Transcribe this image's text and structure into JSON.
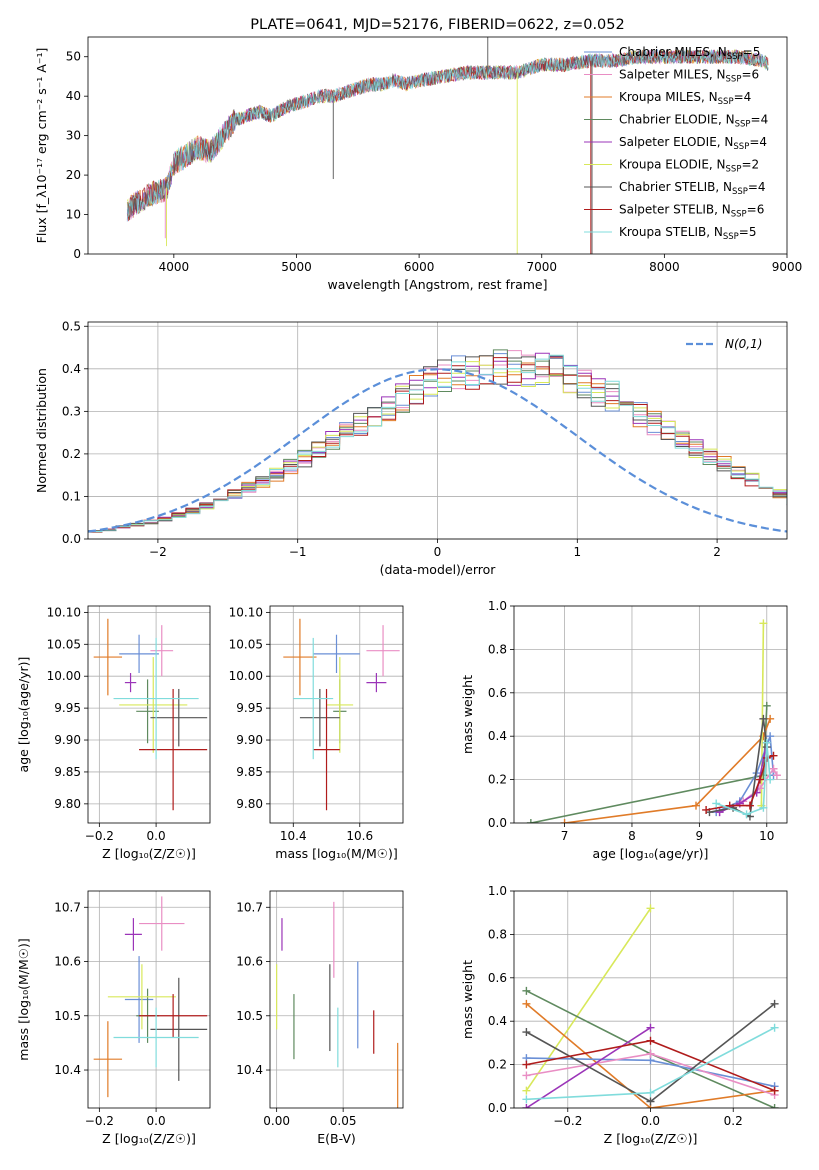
{
  "colors": {
    "chabrier_miles": "#6a8fd6",
    "salpeter_miles": "#e98ec4",
    "kroupa_miles": "#e07b28",
    "chabrier_elodie": "#5f8a5f",
    "salpeter_elodie": "#9b34b8",
    "kroupa_elodie": "#d8e85a",
    "chabrier_stelib": "#555555",
    "salpeter_stelib": "#b01c1c",
    "kroupa_stelib": "#80dcdc",
    "normal_curve": "#5b8fd9"
  },
  "chart_data": [
    {
      "id": "spectrum",
      "type": "line",
      "title": "PLATE=0641, MJD=52176, FIBERID=0622, z=0.052",
      "xlabel": "wavelength [Angstrom, rest frame]",
      "ylabel": "Flux [f_λ10⁻¹⁷ erg cm⁻² s⁻¹ A⁻¹]",
      "xlim": [
        3300,
        9000
      ],
      "ylim": [
        0,
        55
      ],
      "xticks": [
        4000,
        5000,
        6000,
        7000,
        8000,
        9000
      ],
      "yticks": [
        0,
        10,
        20,
        30,
        40,
        50
      ],
      "legend_position": "top-right",
      "legend": [
        {
          "label": "Chabrier MILES, N_SSP=5",
          "pre": "Chabrier MILES, N",
          "sub": "SSP",
          "post": "=5",
          "color_key": "chabrier_miles"
        },
        {
          "label": "Salpeter MILES, N_SSP=6",
          "pre": "Salpeter MILES, N",
          "sub": "SSP",
          "post": "=6",
          "color_key": "salpeter_miles"
        },
        {
          "label": "Kroupa MILES, N_SSP=4",
          "pre": "Kroupa MILES, N",
          "sub": "SSP",
          "post": "=4",
          "color_key": "kroupa_miles"
        },
        {
          "label": "Chabrier ELODIE, N_SSP=4",
          "pre": "Chabrier ELODIE, N",
          "sub": "SSP",
          "post": "=4",
          "color_key": "chabrier_elodie"
        },
        {
          "label": "Salpeter ELODIE, N_SSP=4",
          "pre": "Salpeter ELODIE, N",
          "sub": "SSP",
          "post": "=4",
          "color_key": "salpeter_elodie"
        },
        {
          "label": "Kroupa ELODIE, N_SSP=2",
          "pre": "Kroupa ELODIE, N",
          "sub": "SSP",
          "post": "=2",
          "color_key": "kroupa_elodie"
        },
        {
          "label": "Chabrier STELIB, N_SSP=4",
          "pre": "Chabrier STELIB, N",
          "sub": "SSP",
          "post": "=4",
          "color_key": "chabrier_stelib"
        },
        {
          "label": "Salpeter STELIB, N_SSP=6",
          "pre": "Salpeter STELIB, N",
          "sub": "SSP",
          "post": "=6",
          "color_key": "salpeter_stelib"
        },
        {
          "label": "Kroupa STELIB, N_SSP=5",
          "pre": "Kroupa STELIB, N",
          "sub": "SSP",
          "post": "=5",
          "color_key": "kroupa_stelib"
        }
      ],
      "continuum": {
        "x": [
          3620,
          3700,
          3800,
          3900,
          3950,
          4000,
          4100,
          4200,
          4300,
          4400,
          4500,
          4600,
          4700,
          4800,
          4900,
          5000,
          5100,
          5200,
          5300,
          5400,
          5500,
          5600,
          5700,
          5800,
          5900,
          6000,
          6200,
          6400,
          6600,
          6800,
          7000,
          7200,
          7400,
          7600,
          7800,
          8000,
          8200,
          8400,
          8600,
          8800,
          8850
        ],
        "y": [
          11,
          13,
          15,
          16,
          17,
          23,
          25,
          27,
          26,
          30,
          34,
          35,
          36,
          35,
          37,
          38,
          39,
          40,
          40,
          41,
          42,
          43,
          43,
          44,
          43,
          44,
          45,
          46,
          46,
          46,
          48,
          48,
          49,
          49,
          50,
          50,
          50,
          50,
          50,
          49,
          48
        ]
      },
      "spikes": [
        {
          "x": 3930,
          "y": 4,
          "color_key": "salpeter_miles"
        },
        {
          "x": 3940,
          "y": 2,
          "color_key": "kroupa_elodie"
        },
        {
          "x": 5300,
          "y": 19,
          "color_key": "chabrier_stelib"
        },
        {
          "x": 6560,
          "y": 58,
          "color_key": "chabrier_stelib"
        },
        {
          "x": 6800,
          "y": 0,
          "color_key": "kroupa_elodie"
        },
        {
          "x": 7400,
          "y": 0,
          "color_key": "salpeter_stelib"
        },
        {
          "x": 7410,
          "y": 0,
          "color_key": "chabrier_stelib"
        },
        {
          "x": 8630,
          "y": 51,
          "color_key": "chabrier_stelib"
        }
      ]
    },
    {
      "id": "residuals",
      "type": "line",
      "xlabel": "(data-model)/error",
      "ylabel": "Normed distribution",
      "xlim": [
        -2.5,
        2.5
      ],
      "ylim": [
        0,
        0.51
      ],
      "xticks": [
        -2,
        -1,
        0,
        1,
        2
      ],
      "yticks": [
        0.0,
        0.1,
        0.2,
        0.3,
        0.4,
        0.5
      ],
      "grid": true,
      "legend_position": "top-right",
      "legend": [
        {
          "label": "N(0,1)",
          "color_key": "normal_curve"
        }
      ],
      "bin_width": 0.1,
      "bin_start": -2.5,
      "base": [
        0.018,
        0.022,
        0.028,
        0.033,
        0.04,
        0.047,
        0.056,
        0.066,
        0.079,
        0.09,
        0.104,
        0.12,
        0.136,
        0.15,
        0.17,
        0.19,
        0.21,
        0.23,
        0.25,
        0.27,
        0.29,
        0.31,
        0.33,
        0.35,
        0.365,
        0.38,
        0.39,
        0.395,
        0.4,
        0.405,
        0.405,
        0.4,
        0.395,
        0.39,
        0.38,
        0.365,
        0.35,
        0.335,
        0.315,
        0.295,
        0.275,
        0.255,
        0.235,
        0.215,
        0.195,
        0.175,
        0.155,
        0.14,
        0.12,
        0.105,
        0.09,
        0.08,
        0.068,
        0.058,
        0.049,
        0.042,
        0.036,
        0.03,
        0.026,
        0.022
      ],
      "series_keys": [
        "chabrier_miles",
        "salpeter_miles",
        "kroupa_miles",
        "chabrier_elodie",
        "salpeter_elodie",
        "kroupa_elodie",
        "chabrier_stelib",
        "salpeter_stelib",
        "kroupa_stelib"
      ]
    },
    {
      "id": "age_vs_z",
      "type": "scatter",
      "xlabel": "Z [log₁₀(Z/Z☉)]",
      "ylabel": "age  [log₁₀(age/yr)]",
      "xlim": [
        -0.24,
        0.19
      ],
      "ylim": [
        9.77,
        10.11
      ],
      "xticks": [
        -0.2,
        0.0
      ],
      "yticks": [
        9.8,
        9.85,
        9.9,
        9.95,
        10.0,
        10.05,
        10.1
      ],
      "grid": true,
      "points": [
        {
          "color_key": "chabrier_miles",
          "x": -0.06,
          "xerr": 0.07,
          "y": 10.035,
          "yerr": 0.03
        },
        {
          "color_key": "salpeter_miles",
          "x": 0.02,
          "xerr": 0.04,
          "y": 10.04,
          "yerr": 0.04
        },
        {
          "color_key": "kroupa_miles",
          "x": -0.17,
          "xerr": 0.05,
          "y": 10.03,
          "yerr": 0.06
        },
        {
          "color_key": "chabrier_elodie",
          "x": -0.03,
          "xerr": 0.04,
          "y": 9.945,
          "yerr": 0.05
        },
        {
          "color_key": "salpeter_elodie",
          "x": -0.09,
          "xerr": 0.02,
          "y": 9.99,
          "yerr": 0.015
        },
        {
          "color_key": "kroupa_elodie",
          "x": -0.01,
          "xerr": 0.12,
          "y": 9.955,
          "yerr": 0.075
        },
        {
          "color_key": "chabrier_stelib",
          "x": 0.08,
          "xerr": 0.1,
          "y": 9.935,
          "yerr": 0.045
        },
        {
          "color_key": "salpeter_stelib",
          "x": 0.06,
          "xerr": 0.12,
          "y": 9.885,
          "yerr": 0.095
        },
        {
          "color_key": "kroupa_stelib",
          "x": 0.0,
          "xerr": 0.15,
          "y": 9.965,
          "yerr": 0.095
        }
      ]
    },
    {
      "id": "age_vs_mass",
      "type": "scatter",
      "xlabel": "mass [log₁₀(M/M☉)]",
      "xlim": [
        10.33,
        10.73
      ],
      "ylim": [
        9.77,
        10.11
      ],
      "xticks": [
        10.4,
        10.6
      ],
      "yticks": [
        9.8,
        9.85,
        9.9,
        9.95,
        10.0,
        10.05,
        10.1
      ],
      "grid": true,
      "points": [
        {
          "color_key": "chabrier_miles",
          "x": 10.53,
          "xerr": 0.07,
          "y": 10.035,
          "yerr": 0.03
        },
        {
          "color_key": "salpeter_miles",
          "x": 10.67,
          "xerr": 0.05,
          "y": 10.04,
          "yerr": 0.04
        },
        {
          "color_key": "kroupa_miles",
          "x": 10.42,
          "xerr": 0.05,
          "y": 10.03,
          "yerr": 0.06
        },
        {
          "color_key": "chabrier_elodie",
          "x": 10.54,
          "xerr": 0.02,
          "y": 9.945,
          "yerr": 0.05
        },
        {
          "color_key": "salpeter_elodie",
          "x": 10.65,
          "xerr": 0.03,
          "y": 9.99,
          "yerr": 0.015
        },
        {
          "color_key": "kroupa_elodie",
          "x": 10.54,
          "xerr": 0.04,
          "y": 9.955,
          "yerr": 0.075
        },
        {
          "color_key": "chabrier_stelib",
          "x": 10.48,
          "xerr": 0.06,
          "y": 9.935,
          "yerr": 0.045
        },
        {
          "color_key": "salpeter_stelib",
          "x": 10.5,
          "xerr": 0.04,
          "y": 9.885,
          "yerr": 0.095
        },
        {
          "color_key": "kroupa_stelib",
          "x": 10.46,
          "xerr": 0.06,
          "y": 9.965,
          "yerr": 0.095
        }
      ]
    },
    {
      "id": "mass_vs_z",
      "type": "scatter",
      "xlabel": "Z [log₁₀(Z/Z☉)]",
      "ylabel": "mass [log₁₀(M/M☉)]",
      "xlim": [
        -0.24,
        0.19
      ],
      "ylim": [
        10.33,
        10.73
      ],
      "xticks": [
        -0.2,
        0.0
      ],
      "yticks": [
        10.4,
        10.5,
        10.6,
        10.7
      ],
      "grid": true,
      "points": [
        {
          "color_key": "chabrier_miles",
          "x": -0.06,
          "xerr": 0.05,
          "y": 10.53,
          "yerr": 0.08
        },
        {
          "color_key": "salpeter_miles",
          "x": 0.02,
          "xerr": 0.08,
          "y": 10.67,
          "yerr": 0.05
        },
        {
          "color_key": "kroupa_miles",
          "x": -0.17,
          "xerr": 0.05,
          "y": 10.42,
          "yerr": 0.07
        },
        {
          "color_key": "chabrier_elodie",
          "x": -0.03,
          "xerr": 0.04,
          "y": 10.5,
          "yerr": 0.05
        },
        {
          "color_key": "salpeter_elodie",
          "x": -0.08,
          "xerr": 0.03,
          "y": 10.65,
          "yerr": 0.03
        },
        {
          "color_key": "kroupa_elodie",
          "x": -0.05,
          "xerr": 0.12,
          "y": 10.535,
          "yerr": 0.06
        },
        {
          "color_key": "chabrier_stelib",
          "x": 0.08,
          "xerr": 0.1,
          "y": 10.475,
          "yerr": 0.095
        },
        {
          "color_key": "salpeter_stelib",
          "x": 0.06,
          "xerr": 0.12,
          "y": 10.5,
          "yerr": 0.04
        },
        {
          "color_key": "kroupa_stelib",
          "x": 0.0,
          "xerr": 0.15,
          "y": 10.46,
          "yerr": 0.055
        }
      ]
    },
    {
      "id": "mass_vs_ebv",
      "type": "scatter",
      "xlabel": "E(B-V)",
      "xlim": [
        -0.005,
        0.095
      ],
      "ylim": [
        10.33,
        10.73
      ],
      "xticks": [
        0.0,
        0.05
      ],
      "yticks": [
        10.4,
        10.5,
        10.6,
        10.7
      ],
      "grid": true,
      "points": [
        {
          "color_key": "chabrier_miles",
          "x": 0.061,
          "y": 10.52,
          "yerr": 0.08
        },
        {
          "color_key": "salpeter_miles",
          "x": 0.043,
          "y": 10.64,
          "yerr": 0.07
        },
        {
          "color_key": "kroupa_miles",
          "x": 0.091,
          "y": 10.37,
          "yerr": 0.08
        },
        {
          "color_key": "chabrier_elodie",
          "x": 0.013,
          "y": 10.48,
          "yerr": 0.06
        },
        {
          "color_key": "salpeter_elodie",
          "x": 0.004,
          "y": 10.65,
          "yerr": 0.03
        },
        {
          "color_key": "kroupa_elodie",
          "x": 0.0,
          "y": 10.535,
          "yerr": 0.06
        },
        {
          "color_key": "chabrier_stelib",
          "x": 0.04,
          "y": 10.515,
          "yerr": 0.08
        },
        {
          "color_key": "salpeter_stelib",
          "x": 0.073,
          "y": 10.47,
          "yerr": 0.04
        },
        {
          "color_key": "kroupa_stelib",
          "x": 0.046,
          "y": 10.46,
          "yerr": 0.055
        }
      ]
    },
    {
      "id": "weight_vs_age",
      "type": "line",
      "xlabel": "age  [log₁₀(age/yr)]",
      "ylabel": "mass weight",
      "xlim": [
        6.25,
        10.3
      ],
      "ylim": [
        0,
        1.0
      ],
      "xticks": [
        7,
        8,
        9,
        10
      ],
      "yticks": [
        0.0,
        0.2,
        0.4,
        0.6,
        0.8,
        1.0
      ],
      "grid": true,
      "series": [
        {
          "color_key": "chabrier_elodie",
          "x": [
            6.5,
            9.95,
            10.0
          ],
          "y": [
            0.0,
            0.22,
            0.54
          ]
        },
        {
          "color_key": "kroupa_miles",
          "x": [
            7.0,
            8.95,
            9.95,
            10.05
          ],
          "y": [
            0.0,
            0.08,
            0.4,
            0.48
          ]
        },
        {
          "color_key": "kroupa_elodie",
          "x": [
            9.92,
            9.95
          ],
          "y": [
            0.08,
            0.92
          ]
        },
        {
          "color_key": "chabrier_miles",
          "x": [
            9.25,
            9.6,
            9.85,
            10.05,
            10.1
          ],
          "y": [
            0.05,
            0.1,
            0.23,
            0.4,
            0.22
          ]
        },
        {
          "color_key": "salpeter_miles",
          "x": [
            9.3,
            9.65,
            9.9,
            10.1,
            10.15
          ],
          "y": [
            0.05,
            0.1,
            0.16,
            0.25,
            0.22
          ]
        },
        {
          "color_key": "salpeter_elodie",
          "x": [
            9.3,
            9.6,
            9.85,
            10.0
          ],
          "y": [
            0.05,
            0.09,
            0.14,
            0.37
          ]
        },
        {
          "color_key": "chabrier_stelib",
          "x": [
            9.15,
            9.5,
            9.75,
            9.95,
            10.0
          ],
          "y": [
            0.05,
            0.07,
            0.03,
            0.48,
            0.35
          ]
        },
        {
          "color_key": "salpeter_stelib",
          "x": [
            9.1,
            9.45,
            9.75,
            9.9,
            10.0,
            10.1
          ],
          "y": [
            0.06,
            0.08,
            0.08,
            0.2,
            0.3,
            0.31
          ]
        },
        {
          "color_key": "kroupa_stelib",
          "x": [
            9.25,
            9.7,
            9.95,
            10.0,
            10.05
          ],
          "y": [
            0.09,
            0.04,
            0.07,
            0.37,
            0.2
          ]
        }
      ]
    },
    {
      "id": "weight_vs_z",
      "type": "line",
      "xlabel": "Z [log₁₀(Z/Z☉)]",
      "ylabel": "mass weight",
      "xlim": [
        -0.33,
        0.33
      ],
      "ylim": [
        0,
        1.0
      ],
      "xticks": [
        -0.2,
        0.0,
        0.2
      ],
      "yticks": [
        0.0,
        0.2,
        0.4,
        0.6,
        0.8,
        1.0
      ],
      "grid": true,
      "series": [
        {
          "color_key": "kroupa_elodie",
          "x": [
            -0.3,
            0.0
          ],
          "y": [
            0.08,
            0.92
          ]
        },
        {
          "color_key": "chabrier_elodie",
          "x": [
            -0.3,
            0.0,
            0.3
          ],
          "y": [
            0.54,
            0.25,
            0.0
          ]
        },
        {
          "color_key": "kroupa_miles",
          "x": [
            -0.3,
            0.0,
            0.3
          ],
          "y": [
            0.48,
            0.0,
            0.08
          ]
        },
        {
          "color_key": "chabrier_miles",
          "x": [
            -0.3,
            0.0,
            0.3
          ],
          "y": [
            0.23,
            0.22,
            0.1
          ]
        },
        {
          "color_key": "salpeter_miles",
          "x": [
            -0.3,
            0.0,
            0.3
          ],
          "y": [
            0.15,
            0.25,
            0.06
          ]
        },
        {
          "color_key": "salpeter_elodie",
          "x": [
            -0.3,
            0.0
          ],
          "y": [
            0.0,
            0.37
          ]
        },
        {
          "color_key": "chabrier_stelib",
          "x": [
            -0.3,
            0.0,
            0.3
          ],
          "y": [
            0.35,
            0.03,
            0.48
          ]
        },
        {
          "color_key": "salpeter_stelib",
          "x": [
            -0.3,
            0.0,
            0.3
          ],
          "y": [
            0.2,
            0.31,
            0.08
          ]
        },
        {
          "color_key": "kroupa_stelib",
          "x": [
            -0.3,
            0.0,
            0.3
          ],
          "y": [
            0.04,
            0.07,
            0.37
          ]
        }
      ]
    }
  ]
}
